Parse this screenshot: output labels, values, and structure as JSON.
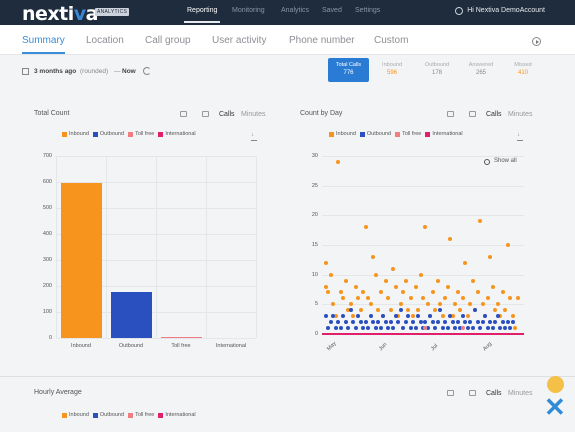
{
  "header": {
    "logo_text": "nextiva",
    "logo_badge": "ANALYTICS",
    "nav": [
      "Reporting",
      "Monitoring",
      "Analytics",
      "Saved",
      "Settings"
    ],
    "active_nav": "Reporting",
    "user_greeting": "Hi Nextiva DemoAccount"
  },
  "tabs": {
    "items": [
      "Summary",
      "Location",
      "Call group",
      "User activity",
      "Phone number",
      "Custom"
    ],
    "active": "Summary"
  },
  "range": {
    "start": "3 months ago",
    "start_note": "(rounded)",
    "separator": "—",
    "end": "Now"
  },
  "stats": [
    {
      "label": "Total Calls",
      "value": "776",
      "active": true
    },
    {
      "label": "Inbound",
      "value": "596",
      "color": "#f7941d"
    },
    {
      "label": "Outbound",
      "value": "178",
      "color": "#2a4fbf"
    },
    {
      "label": "Answered",
      "value": "265",
      "color": "#888888"
    },
    {
      "label": "Missed",
      "value": "410",
      "color": "#f7941d"
    }
  ],
  "total_count_panel": {
    "title": "Total Count",
    "toggle_calls": "Calls",
    "toggle_minutes": "Minutes",
    "legend": [
      {
        "name": "Inbound",
        "color": "#f7941d"
      },
      {
        "name": "Outbound",
        "color": "#2a4fbf"
      },
      {
        "name": "Toll free",
        "color": "#f27d80"
      },
      {
        "name": "International",
        "color": "#e0206a"
      }
    ]
  },
  "count_by_day_panel": {
    "title": "Count by Day",
    "toggle_calls": "Calls",
    "toggle_minutes": "Minutes",
    "show_all": "Show all",
    "legend": [
      {
        "name": "Inbound",
        "color": "#f7941d"
      },
      {
        "name": "Outbound",
        "color": "#2a4fbf"
      },
      {
        "name": "Toll free",
        "color": "#f27d80"
      },
      {
        "name": "International",
        "color": "#e0206a"
      }
    ],
    "xticks": [
      "May",
      "Jun",
      "Jul",
      "Aug"
    ]
  },
  "hourly_panel": {
    "title": "Hourly Average",
    "toggle_calls": "Calls",
    "toggle_minutes": "Minutes",
    "legend": [
      {
        "name": "Inbound",
        "color": "#f7941d"
      },
      {
        "name": "Outbound",
        "color": "#2a4fbf"
      },
      {
        "name": "Toll free",
        "color": "#f27d80"
      },
      {
        "name": "International",
        "color": "#e0206a"
      }
    ]
  },
  "chart_data": [
    {
      "type": "bar",
      "title": "Total Count",
      "categories": [
        "Inbound",
        "Outbound",
        "Toll free",
        "International"
      ],
      "values": [
        596,
        178,
        2,
        0
      ],
      "colors": [
        "#f7941d",
        "#2a4fbf",
        "#f27d80",
        "#e0206a"
      ],
      "ylim": [
        0,
        700
      ],
      "yticks": [
        0,
        100,
        200,
        300,
        400,
        500,
        600,
        700
      ]
    },
    {
      "type": "scatter",
      "title": "Count by Day",
      "ylim": [
        0,
        30
      ],
      "yticks": [
        0,
        5,
        10,
        15,
        20,
        25,
        30
      ],
      "x_range": [
        "2016-05-01",
        "2016-08-31"
      ],
      "series": [
        {
          "name": "Inbound",
          "color": "#f7941d",
          "points": [
            [
              0,
              12
            ],
            [
              0,
              8
            ],
            [
              1,
              7
            ],
            [
              2,
              10
            ],
            [
              3,
              5
            ],
            [
              4,
              3
            ],
            [
              5,
              29
            ],
            [
              6,
              7
            ],
            [
              7,
              6
            ],
            [
              8,
              9
            ],
            [
              9,
              4
            ],
            [
              10,
              5
            ],
            [
              11,
              3
            ],
            [
              12,
              8
            ],
            [
              13,
              6
            ],
            [
              14,
              4
            ],
            [
              15,
              7
            ],
            [
              16,
              18
            ],
            [
              17,
              6
            ],
            [
              18,
              5
            ],
            [
              19,
              13
            ],
            [
              20,
              10
            ],
            [
              21,
              4
            ],
            [
              22,
              7
            ],
            [
              23,
              3
            ],
            [
              24,
              9
            ],
            [
              25,
              6
            ],
            [
              26,
              4
            ],
            [
              27,
              11
            ],
            [
              28,
              8
            ],
            [
              29,
              3
            ],
            [
              30,
              5
            ],
            [
              31,
              7
            ],
            [
              32,
              9
            ],
            [
              33,
              4
            ],
            [
              34,
              6
            ],
            [
              35,
              3
            ],
            [
              36,
              8
            ],
            [
              37,
              4
            ],
            [
              38,
              10
            ],
            [
              39,
              6
            ],
            [
              40,
              18
            ],
            [
              41,
              5
            ],
            [
              42,
              3
            ],
            [
              43,
              7
            ],
            [
              44,
              4
            ],
            [
              45,
              9
            ],
            [
              46,
              5
            ],
            [
              47,
              3
            ],
            [
              48,
              6
            ],
            [
              49,
              8
            ],
            [
              50,
              16
            ],
            [
              51,
              3
            ],
            [
              52,
              5
            ],
            [
              53,
              7
            ],
            [
              54,
              4
            ],
            [
              55,
              6
            ],
            [
              56,
              12
            ],
            [
              57,
              3
            ],
            [
              58,
              5
            ],
            [
              59,
              9
            ],
            [
              60,
              4
            ],
            [
              61,
              7
            ],
            [
              62,
              19
            ],
            [
              63,
              5
            ],
            [
              64,
              3
            ],
            [
              65,
              6
            ],
            [
              66,
              13
            ],
            [
              67,
              8
            ],
            [
              68,
              4
            ],
            [
              69,
              5
            ],
            [
              70,
              3
            ],
            [
              71,
              7
            ],
            [
              72,
              4
            ],
            [
              73,
              15
            ],
            [
              74,
              6
            ],
            [
              75,
              3
            ],
            [
              76,
              1
            ],
            [
              77,
              6
            ]
          ]
        },
        {
          "name": "Outbound",
          "color": "#2a4fbf",
          "points": [
            [
              0,
              3
            ],
            [
              1,
              1
            ],
            [
              2,
              2
            ],
            [
              3,
              3
            ],
            [
              4,
              1
            ],
            [
              5,
              2
            ],
            [
              6,
              1
            ],
            [
              7,
              3
            ],
            [
              8,
              2
            ],
            [
              9,
              1
            ],
            [
              10,
              4
            ],
            [
              11,
              2
            ],
            [
              12,
              1
            ],
            [
              13,
              3
            ],
            [
              14,
              2
            ],
            [
              15,
              1
            ],
            [
              16,
              2
            ],
            [
              17,
              1
            ],
            [
              18,
              3
            ],
            [
              19,
              2
            ],
            [
              20,
              1
            ],
            [
              21,
              2
            ],
            [
              22,
              1
            ],
            [
              23,
              3
            ],
            [
              24,
              2
            ],
            [
              25,
              1
            ],
            [
              26,
              2
            ],
            [
              27,
              1
            ],
            [
              28,
              3
            ],
            [
              29,
              2
            ],
            [
              30,
              4
            ],
            [
              31,
              1
            ],
            [
              32,
              2
            ],
            [
              33,
              3
            ],
            [
              34,
              1
            ],
            [
              35,
              2
            ],
            [
              36,
              1
            ],
            [
              37,
              3
            ],
            [
              38,
              2
            ],
            [
              39,
              1
            ],
            [
              40,
              2
            ],
            [
              41,
              1
            ],
            [
              42,
              3
            ],
            [
              43,
              2
            ],
            [
              44,
              1
            ],
            [
              45,
              2
            ],
            [
              46,
              4
            ],
            [
              47,
              1
            ],
            [
              48,
              2
            ],
            [
              49,
              1
            ],
            [
              50,
              3
            ],
            [
              51,
              2
            ],
            [
              52,
              1
            ],
            [
              53,
              2
            ],
            [
              54,
              1
            ],
            [
              55,
              3
            ],
            [
              56,
              2
            ],
            [
              57,
              1
            ],
            [
              58,
              2
            ],
            [
              59,
              1
            ],
            [
              60,
              4
            ],
            [
              61,
              2
            ],
            [
              62,
              1
            ],
            [
              63,
              2
            ],
            [
              64,
              3
            ],
            [
              65,
              1
            ],
            [
              66,
              2
            ],
            [
              67,
              1
            ],
            [
              68,
              2
            ],
            [
              69,
              3
            ],
            [
              70,
              1
            ],
            [
              71,
              2
            ],
            [
              72,
              1
            ],
            [
              73,
              2
            ],
            [
              74,
              1
            ],
            [
              75,
              2
            ]
          ]
        },
        {
          "name": "Toll free",
          "color": "#f27d80",
          "points": [
            [
              40,
              1
            ],
            [
              55,
              1
            ]
          ]
        },
        {
          "name": "International",
          "color": "#e0206a",
          "points": []
        }
      ]
    }
  ]
}
